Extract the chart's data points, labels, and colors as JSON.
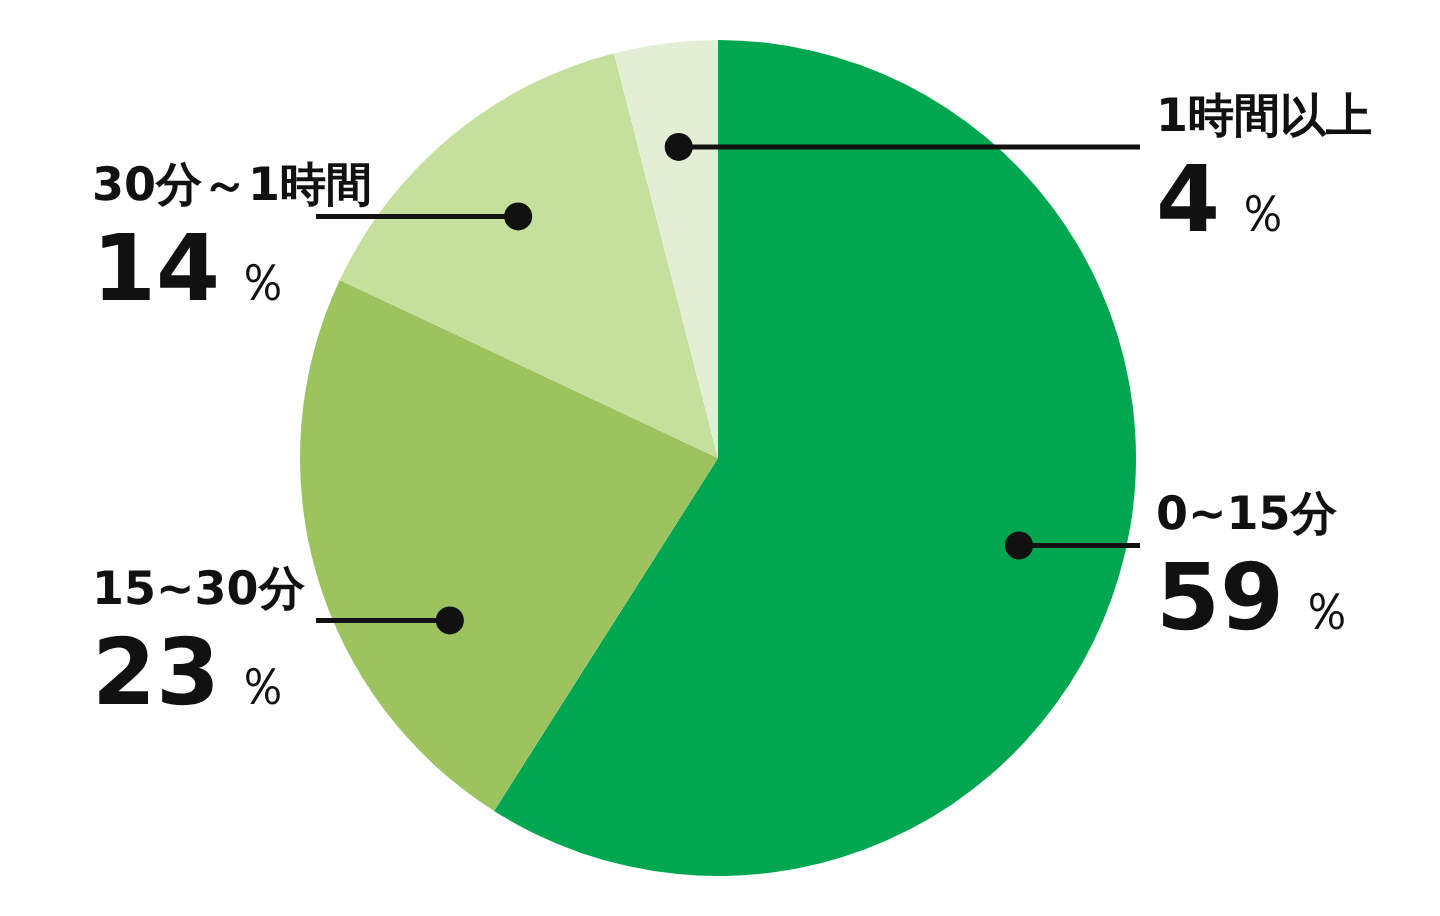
{
  "chart_data": {
    "type": "pie",
    "categories": [
      "0~15分",
      "15~30分",
      "30分～1時間",
      "1時間以上"
    ],
    "values": [
      59,
      23,
      14,
      4
    ],
    "colors": [
      "#00a650",
      "#9cc35e",
      "#c5df9c",
      "#e2efd4"
    ],
    "value_labels": [
      "59％",
      "23％",
      "14％",
      "4％"
    ]
  }
}
